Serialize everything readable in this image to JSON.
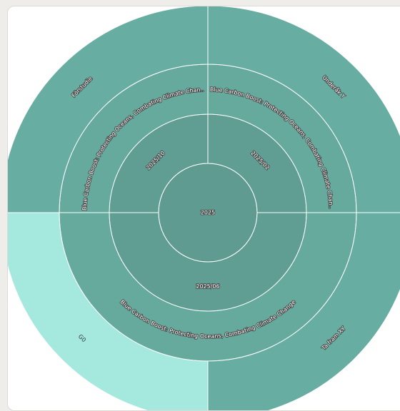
{
  "chart_data": {
    "type": "sunburst",
    "title": "",
    "root": {
      "name": "2025"
    },
    "nodes": [
      {
        "ring": 1,
        "name": "2025/02",
        "parent": "2025",
        "start": 0.0,
        "end": 0.25
      },
      {
        "ring": 1,
        "name": "2025/06",
        "parent": "2025",
        "start": 0.25,
        "end": 0.75
      },
      {
        "ring": 1,
        "name": "2025/10",
        "parent": "2025",
        "start": 0.75,
        "end": 1.0
      },
      {
        "ring": 2,
        "name": "Blue Carbon Boost: Protecting Oceans, Combating Climate Chan...",
        "parent": "2025/02",
        "start": 0.0,
        "end": 0.25
      },
      {
        "ring": 2,
        "name": "Blue Carbon Boost: Protecting Oceans, Combating Climate Change",
        "parent": "2025/06",
        "start": 0.25,
        "end": 0.75
      },
      {
        "ring": 2,
        "name": "Blue Carbon Boost: Protecting Oceans, Combating Climate Chan...",
        "parent": "2025/10",
        "start": 0.75,
        "end": 1.0
      },
      {
        "ring": 3,
        "name": "Underåk Y",
        "parent": "2025/02",
        "start": 0.0,
        "end": 0.25,
        "color": "#68ada1"
      },
      {
        "ring": 3,
        "name": "Ta fram XY",
        "parent": "2025/06",
        "start": 0.25,
        "end": 0.5,
        "color": "#68ada1"
      },
      {
        "ring": 3,
        "name": "G0",
        "parent": "2025/06",
        "start": 0.5,
        "end": 0.75,
        "color": "#a5e8de"
      },
      {
        "ring": 3,
        "name": "Förstudie",
        "parent": "2025/10",
        "start": 0.75,
        "end": 1.0,
        "color": "#68ada1"
      }
    ],
    "colors": {
      "center": "#5f9b90",
      "ring1": "#609e93",
      "ring2": "#66aa9e",
      "ring3": "#68ada1",
      "highlight": "#a5e8de",
      "separator": "#ffffff"
    },
    "legend": "none"
  }
}
